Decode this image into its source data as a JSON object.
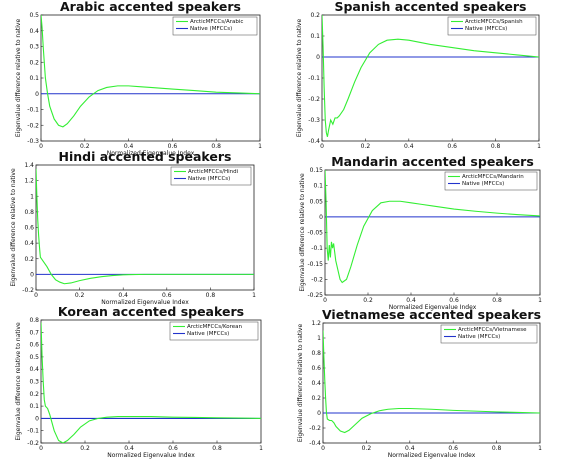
{
  "chart_data": [
    {
      "type": "line",
      "title": "Arabic accented speakers",
      "xlabel": "Normalized Eigenvalue Index",
      "ylabel": "Eigenvalue difference relative to native",
      "xlim": [
        0,
        1
      ],
      "ylim": [
        -0.3,
        0.5
      ],
      "xticks": [
        0,
        0.2,
        0.4,
        0.6,
        0.8,
        1
      ],
      "xtick_labels": [
        "0",
        "0.2",
        "0.4",
        "0.6",
        "0.8",
        "1"
      ],
      "yticks": [
        -0.3,
        -0.2,
        -0.1,
        0,
        0.1,
        0.2,
        0.3,
        0.4,
        0.5
      ],
      "ytick_labels": [
        "-0.3",
        "-0.2",
        "-0.1",
        "0",
        "0.1",
        "0.2",
        "0.3",
        "0.4",
        "0.5"
      ],
      "legend_position": "top-right",
      "series": [
        {
          "name": "ArcticMFCCs/Arabic",
          "color": "#33ee33",
          "x": [
            0,
            0.005,
            0.01,
            0.015,
            0.02,
            0.03,
            0.04,
            0.06,
            0.08,
            0.1,
            0.12,
            0.15,
            0.18,
            0.22,
            0.26,
            0.3,
            0.35,
            0.4,
            0.45,
            0.5,
            0.6,
            0.7,
            0.8,
            0.9,
            1.0
          ],
          "y": [
            0.5,
            0.42,
            0.3,
            0.2,
            0.1,
            0.0,
            -0.08,
            -0.16,
            -0.2,
            -0.21,
            -0.19,
            -0.14,
            -0.08,
            -0.02,
            0.02,
            0.04,
            0.05,
            0.05,
            0.045,
            0.04,
            0.03,
            0.02,
            0.01,
            0.005,
            0.0
          ]
        },
        {
          "name": "Native (MFCCs)",
          "color": "#2233cc",
          "x": [
            0,
            1
          ],
          "y": [
            0,
            0
          ]
        }
      ]
    },
    {
      "type": "line",
      "title": "Spanish accented speakers",
      "xlabel": "",
      "ylabel": "Eigenvalue difference relative to native",
      "xlim": [
        0,
        1
      ],
      "ylim": [
        -0.4,
        0.2
      ],
      "xticks": [
        0,
        0.2,
        0.4,
        0.6,
        0.8,
        1
      ],
      "xtick_labels": [
        "0",
        "0.2",
        "0.4",
        "0.6",
        "0.8",
        "1"
      ],
      "yticks": [
        -0.4,
        -0.3,
        -0.2,
        -0.1,
        0,
        0.1,
        0.2
      ],
      "ytick_labels": [
        "-0.4",
        "-0.3",
        "-0.2",
        "-0.1",
        "0",
        "0.1",
        "0.2"
      ],
      "legend_position": "top-right",
      "series": [
        {
          "name": "ArcticMFCCs/Spanish",
          "color": "#33ee33",
          "x": [
            0,
            0.005,
            0.01,
            0.015,
            0.02,
            0.025,
            0.03,
            0.04,
            0.05,
            0.06,
            0.07,
            0.08,
            0.1,
            0.12,
            0.15,
            0.18,
            0.22,
            0.26,
            0.3,
            0.35,
            0.4,
            0.45,
            0.5,
            0.6,
            0.7,
            0.8,
            0.9,
            1.0
          ],
          "y": [
            0.2,
            0.05,
            -0.15,
            -0.3,
            -0.36,
            -0.38,
            -0.35,
            -0.3,
            -0.32,
            -0.29,
            -0.29,
            -0.28,
            -0.25,
            -0.2,
            -0.12,
            -0.05,
            0.02,
            0.06,
            0.08,
            0.085,
            0.08,
            0.07,
            0.06,
            0.045,
            0.03,
            0.02,
            0.01,
            0.0
          ]
        },
        {
          "name": "Native (MFCCs)",
          "color": "#2233cc",
          "x": [
            0,
            1
          ],
          "y": [
            0,
            0
          ]
        }
      ]
    },
    {
      "type": "line",
      "title": "Hindi accented speakers",
      "xlabel": "Normalized Eigenvalue Index",
      "ylabel": "Eigenvalue difference relative to native",
      "xlim": [
        0,
        1
      ],
      "ylim": [
        -0.2,
        1.4
      ],
      "xticks": [
        0,
        0.2,
        0.4,
        0.6,
        0.8,
        1
      ],
      "xtick_labels": [
        "0",
        "0.2",
        "0.4",
        "0.6",
        "0.8",
        "1"
      ],
      "yticks": [
        -0.2,
        0,
        0.2,
        0.4,
        0.6,
        0.8,
        1,
        1.2,
        1.4
      ],
      "ytick_labels": [
        "-0.2",
        "0",
        "0.2",
        "0.4",
        "0.6",
        "0.8",
        "1",
        "1.2",
        "1.4"
      ],
      "legend_position": "top-right",
      "series": [
        {
          "name": "ArcticMFCCs/Hindi",
          "color": "#33ee33",
          "x": [
            0,
            0.004,
            0.008,
            0.012,
            0.016,
            0.02,
            0.03,
            0.04,
            0.05,
            0.07,
            0.09,
            0.11,
            0.13,
            0.16,
            0.2,
            0.25,
            0.3,
            0.35,
            0.4,
            0.5,
            0.6,
            0.7,
            0.8,
            0.9,
            1.0
          ],
          "y": [
            1.35,
            1.0,
            0.7,
            0.5,
            0.35,
            0.22,
            0.18,
            0.14,
            0.1,
            0.0,
            -0.07,
            -0.1,
            -0.12,
            -0.11,
            -0.08,
            -0.05,
            -0.03,
            -0.015,
            -0.005,
            0.0,
            0.0,
            0.0,
            0.0,
            0.0,
            0.0
          ]
        },
        {
          "name": "Native (MFCCs)",
          "color": "#2233cc",
          "x": [
            0,
            1
          ],
          "y": [
            0,
            0
          ]
        }
      ]
    },
    {
      "type": "line",
      "title": "Mandarin accented speakers",
      "xlabel": "Normalized Eigenvalue Index",
      "ylabel": "Eigenvalue difference relative to native",
      "xlim": [
        0,
        1
      ],
      "ylim": [
        -0.25,
        0.15
      ],
      "xticks": [
        0,
        0.2,
        0.4,
        0.6,
        0.8,
        1
      ],
      "xtick_labels": [
        "0",
        "0.2",
        "0.4",
        "0.6",
        "0.8",
        "1"
      ],
      "yticks": [
        -0.25,
        -0.2,
        -0.15,
        -0.1,
        -0.05,
        0,
        0.05,
        0.1,
        0.15
      ],
      "ytick_labels": [
        "-0.25",
        "-0.2",
        "-0.15",
        "-0.1",
        "-0.05",
        "0",
        "0.05",
        "0.1",
        "0.15"
      ],
      "legend_position": "top-right",
      "series": [
        {
          "name": "ArcticMFCCs/Mandarin",
          "color": "#33ee33",
          "x": [
            0,
            0.005,
            0.01,
            0.015,
            0.02,
            0.025,
            0.03,
            0.035,
            0.04,
            0.05,
            0.06,
            0.07,
            0.08,
            0.1,
            0.12,
            0.15,
            0.18,
            0.22,
            0.26,
            0.3,
            0.35,
            0.4,
            0.45,
            0.5,
            0.6,
            0.7,
            0.8,
            0.9,
            1.0
          ],
          "y": [
            0.15,
            0.05,
            -0.1,
            -0.14,
            -0.09,
            -0.13,
            -0.08,
            -0.1,
            -0.085,
            -0.14,
            -0.17,
            -0.2,
            -0.21,
            -0.2,
            -0.16,
            -0.09,
            -0.03,
            0.02,
            0.045,
            0.05,
            0.05,
            0.045,
            0.04,
            0.035,
            0.025,
            0.018,
            0.012,
            0.007,
            0.003
          ]
        },
        {
          "name": "Native (MFCCs)",
          "color": "#2233cc",
          "x": [
            0,
            1
          ],
          "y": [
            0,
            0
          ]
        }
      ]
    },
    {
      "type": "line",
      "title": "Korean accented speakers",
      "xlabel": "Normalized Eigenvalue Index",
      "ylabel": "Eigenvalue difference relative to native",
      "xlim": [
        0,
        1
      ],
      "ylim": [
        -0.2,
        0.8
      ],
      "xticks": [
        0,
        0.2,
        0.4,
        0.6,
        0.8,
        1
      ],
      "xtick_labels": [
        "0",
        "0.2",
        "0.4",
        "0.6",
        "0.8",
        "1"
      ],
      "yticks": [
        -0.2,
        -0.1,
        0,
        0.1,
        0.2,
        0.3,
        0.4,
        0.5,
        0.6,
        0.7,
        0.8
      ],
      "ytick_labels": [
        "-0.2",
        "-0.1",
        "0",
        "0.1",
        "0.2",
        "0.3",
        "0.4",
        "0.5",
        "0.6",
        "0.7",
        "0.8"
      ],
      "legend_position": "top-right",
      "series": [
        {
          "name": "ArcticMFCCs/Korean",
          "color": "#33ee33",
          "x": [
            0,
            0.005,
            0.01,
            0.015,
            0.02,
            0.03,
            0.04,
            0.06,
            0.08,
            0.1,
            0.12,
            0.15,
            0.18,
            0.22,
            0.26,
            0.3,
            0.35,
            0.4,
            0.5,
            0.6,
            0.7,
            0.8,
            0.9,
            1.0
          ],
          "y": [
            0.78,
            0.5,
            0.3,
            0.15,
            0.1,
            0.08,
            0.03,
            -0.1,
            -0.18,
            -0.2,
            -0.18,
            -0.13,
            -0.07,
            -0.02,
            0.0,
            0.01,
            0.015,
            0.015,
            0.015,
            0.01,
            0.008,
            0.005,
            0.003,
            0.0
          ]
        },
        {
          "name": "Native (MFCCs)",
          "color": "#2233cc",
          "x": [
            0,
            1
          ],
          "y": [
            0,
            0
          ]
        }
      ]
    },
    {
      "type": "line",
      "title": "Vietnamese accented speakers",
      "xlabel": "Normalized Eigenvalue Index",
      "ylabel": "Eigenvalue difference relative to native",
      "xlim": [
        0,
        1
      ],
      "ylim": [
        -0.4,
        1.2
      ],
      "xticks": [
        0,
        0.2,
        0.4,
        0.6,
        0.8,
        1
      ],
      "xtick_labels": [
        "0",
        "0.2",
        "0.4",
        "0.6",
        "0.8",
        "1"
      ],
      "yticks": [
        -0.4,
        -0.2,
        0,
        0.2,
        0.4,
        0.6,
        0.8,
        1,
        1.2
      ],
      "ytick_labels": [
        "-0.4",
        "-0.2",
        "0",
        "0.2",
        "0.4",
        "0.6",
        "0.8",
        "1",
        "1.2"
      ],
      "legend_position": "top-right",
      "series": [
        {
          "name": "ArcticMFCCs/Vietnamese",
          "color": "#33ee33",
          "x": [
            0,
            0.004,
            0.008,
            0.012,
            0.016,
            0.02,
            0.03,
            0.04,
            0.05,
            0.06,
            0.08,
            0.1,
            0.12,
            0.15,
            0.18,
            0.22,
            0.26,
            0.3,
            0.35,
            0.4,
            0.45,
            0.5,
            0.6,
            0.7,
            0.8,
            0.9,
            1.0
          ],
          "y": [
            1.1,
            0.75,
            0.45,
            0.2,
            0.0,
            -0.08,
            -0.1,
            -0.1,
            -0.13,
            -0.18,
            -0.24,
            -0.26,
            -0.23,
            -0.15,
            -0.07,
            -0.01,
            0.03,
            0.05,
            0.06,
            0.06,
            0.055,
            0.05,
            0.035,
            0.025,
            0.015,
            0.007,
            0.0
          ]
        },
        {
          "name": "Native (MFCCs)",
          "color": "#2233cc",
          "x": [
            0,
            1
          ],
          "y": [
            0,
            0
          ]
        }
      ]
    }
  ]
}
